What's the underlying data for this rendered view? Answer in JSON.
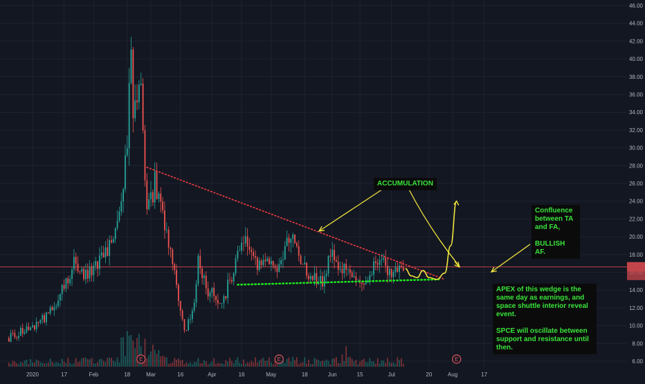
{
  "colors": {
    "background": "#131722",
    "grid": "#1e2331",
    "axis_text": "#b2b5be",
    "up_candle": "#26a69a",
    "down_candle": "#ef5350",
    "resistance_line": "#e0393e",
    "support_line": "#1ee61e",
    "annotation_arrow": "#f2e43c",
    "horizontal_line": "#c2454b",
    "price_tag": "#c2454b",
    "note_text": "#39e53b"
  },
  "chart_data": {
    "type": "candlestick",
    "title": "",
    "xlabel": "",
    "ylabel": "",
    "ylim": [
      5,
      47
    ],
    "grid": true,
    "y_ticks": [
      "6.00",
      "8.00",
      "10.00",
      "12.00",
      "14.00",
      "16.00",
      "18.00",
      "20.00",
      "22.00",
      "24.00",
      "26.00",
      "28.00",
      "30.00",
      "32.00",
      "34.00",
      "36.00",
      "38.00",
      "40.00",
      "42.00",
      "44.00",
      "46.00"
    ],
    "x_tick_labels": [
      "2020",
      "17",
      "Feb",
      "18",
      "Mar",
      "16",
      "Apr",
      "16",
      "May",
      "18",
      "Jun",
      "15",
      "Jul",
      "20",
      "Aug",
      "17"
    ],
    "x_tick_dates": [
      "2020-01-01",
      "2020-01-17",
      "2020-02-01",
      "2020-02-18",
      "2020-03-01",
      "2020-03-16",
      "2020-04-01",
      "2020-04-16",
      "2020-05-01",
      "2020-05-18",
      "2020-06-01",
      "2020-06-15",
      "2020-07-01",
      "2020-07-20",
      "2020-08-01",
      "2020-08-17"
    ],
    "price_path": [
      [
        "2019-12-20",
        8.6
      ],
      [
        "2020-01-02",
        10.0
      ],
      [
        "2020-01-10",
        11.5
      ],
      [
        "2020-01-17",
        14.2
      ],
      [
        "2020-01-23",
        17.4
      ],
      [
        "2020-01-28",
        15.5
      ],
      [
        "2020-02-03",
        17.0
      ],
      [
        "2020-02-10",
        19.6
      ],
      [
        "2020-02-14",
        22.4
      ],
      [
        "2020-02-18",
        30.0
      ],
      [
        "2020-02-20",
        42.0
      ],
      [
        "2020-02-21",
        34.0
      ],
      [
        "2020-02-25",
        36.0
      ],
      [
        "2020-02-28",
        22.0
      ],
      [
        "2020-03-03",
        26.0
      ],
      [
        "2020-03-09",
        20.0
      ],
      [
        "2020-03-13",
        15.5
      ],
      [
        "2020-03-18",
        9.5
      ],
      [
        "2020-03-23",
        12.0
      ],
      [
        "2020-03-25",
        17.0
      ],
      [
        "2020-03-30",
        14.0
      ],
      [
        "2020-04-06",
        12.5
      ],
      [
        "2020-04-10",
        15.0
      ],
      [
        "2020-04-17",
        19.5
      ],
      [
        "2020-04-24",
        17.0
      ],
      [
        "2020-05-04",
        16.5
      ],
      [
        "2020-05-11",
        20.5
      ],
      [
        "2020-05-19",
        16.0
      ],
      [
        "2020-05-27",
        15.0
      ],
      [
        "2020-06-01",
        18.5
      ],
      [
        "2020-06-05",
        16.5
      ],
      [
        "2020-06-12",
        15.5
      ],
      [
        "2020-06-19",
        15.0
      ],
      [
        "2020-06-24",
        17.5
      ],
      [
        "2020-07-01",
        16.0
      ],
      [
        "2020-07-07",
        16.6
      ]
    ],
    "volume_scale": "relative",
    "earnings_markers": [
      {
        "date": "2020-02-25",
        "label": "E"
      },
      {
        "date": "2020-05-05",
        "label": "E"
      },
      {
        "date": "2020-08-03",
        "label": "E"
      }
    ],
    "current_price_line": 16.6,
    "resistance_trendline": [
      [
        "2020-02-28",
        27.8
      ],
      [
        "2020-07-28",
        15.2
      ]
    ],
    "support_trendline": [
      [
        "2020-04-14",
        14.6
      ],
      [
        "2020-07-25",
        15.2
      ]
    ],
    "projection_path": [
      [
        "2020-07-08",
        16.4
      ],
      [
        "2020-07-11",
        15.6
      ],
      [
        "2020-07-14",
        15.4
      ],
      [
        "2020-07-17",
        16.2
      ],
      [
        "2020-07-20",
        15.4
      ],
      [
        "2020-07-24",
        15.2
      ],
      [
        "2020-07-28",
        15.9
      ],
      [
        "2020-07-31",
        19.0
      ],
      [
        "2020-08-03",
        24.0
      ]
    ],
    "annotations": {
      "accumulation": "ACCUMULATION",
      "confluence": "Confluence\nbetween TA\nand FA,\n\nBULLISH AF.",
      "apex": "APEX of this wedge is the same day as earnings, and space shuttle interior reveal event.\n\nSPCE will oscillate between support and resistance until then."
    }
  }
}
